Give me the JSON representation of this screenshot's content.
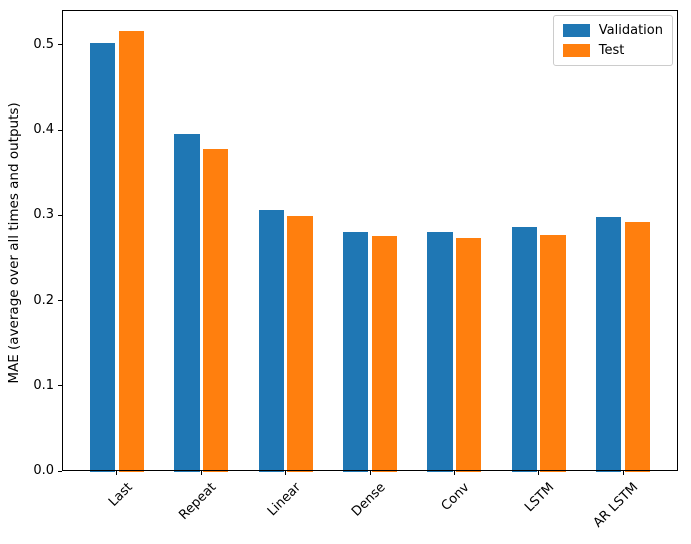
{
  "chart_data": {
    "type": "bar",
    "title": "",
    "xlabel": "",
    "ylabel": "MAE (average over all times and outputs)",
    "categories": [
      "Last",
      "Repeat",
      "Linear",
      "Dense",
      "Conv",
      "LSTM",
      "AR LSTM"
    ],
    "series": [
      {
        "name": "Validation",
        "color": "#1f77b4",
        "values": [
          0.502,
          0.396,
          0.306,
          0.281,
          0.28,
          0.286,
          0.298
        ]
      },
      {
        "name": "Test",
        "color": "#ff7f0e",
        "values": [
          0.516,
          0.378,
          0.299,
          0.276,
          0.273,
          0.277,
          0.292
        ]
      }
    ],
    "ylim": [
      0,
      0.541
    ],
    "xlim": [
      -0.65,
      6.65
    ],
    "yticks": [
      0.0,
      0.1,
      0.2,
      0.3,
      0.4,
      0.5
    ],
    "ytick_labels": [
      "0.0",
      "0.1",
      "0.2",
      "0.3",
      "0.4",
      "0.5"
    ],
    "xtick_rotation": 45,
    "bar_width": 0.3,
    "bar_offset": 0.17,
    "grid": false,
    "legend": {
      "position": "upper right",
      "entries": [
        "Validation",
        "Test"
      ]
    },
    "frame_color": "#000000",
    "background_color": "#ffffff"
  }
}
